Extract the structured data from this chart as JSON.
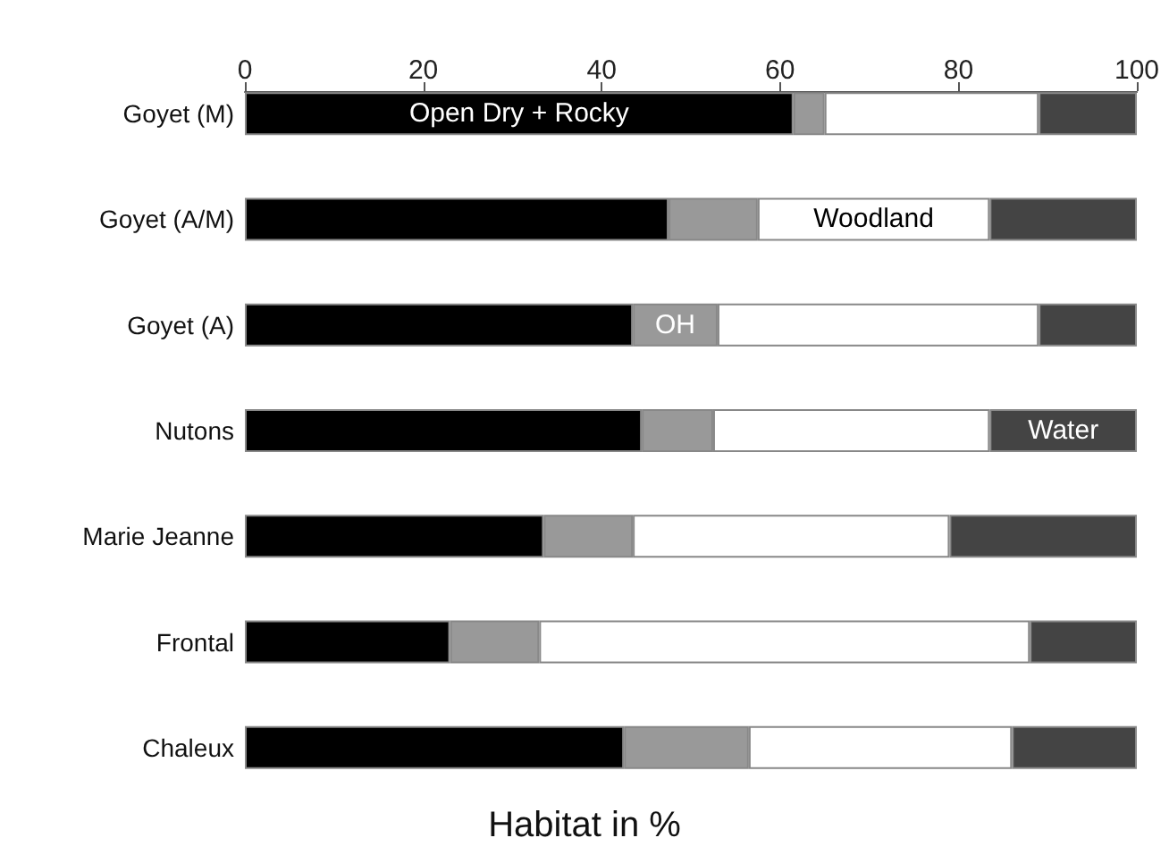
{
  "chart_data": {
    "type": "bar",
    "orientation": "horizontal",
    "stacked": true,
    "xlabel": "Habitat in %",
    "categories": [
      "Goyet (M)",
      "Goyet (A/M)",
      "Goyet (A)",
      "Nutons",
      "Marie Jeanne",
      "Frontal",
      "Chaleux"
    ],
    "series": [
      {
        "name": "Open Dry + Rocky",
        "color": "#000000",
        "values": [
          61.5,
          47.5,
          43.5,
          44.5,
          33.5,
          23,
          42.5
        ]
      },
      {
        "name": "OH",
        "color": "#999999",
        "values": [
          3.5,
          10,
          9.5,
          8,
          10,
          10,
          14
        ]
      },
      {
        "name": "Woodland",
        "color": "#ffffff",
        "values": [
          24,
          26,
          36,
          31,
          35.5,
          55,
          29.5
        ]
      },
      {
        "name": "Water",
        "color": "#444444",
        "values": [
          11,
          16.5,
          11,
          16.5,
          21,
          12,
          14
        ]
      }
    ],
    "xlim": [
      0,
      100
    ],
    "xticks": [
      0,
      20,
      40,
      60,
      80,
      100
    ],
    "grid": false,
    "legend": false
  }
}
